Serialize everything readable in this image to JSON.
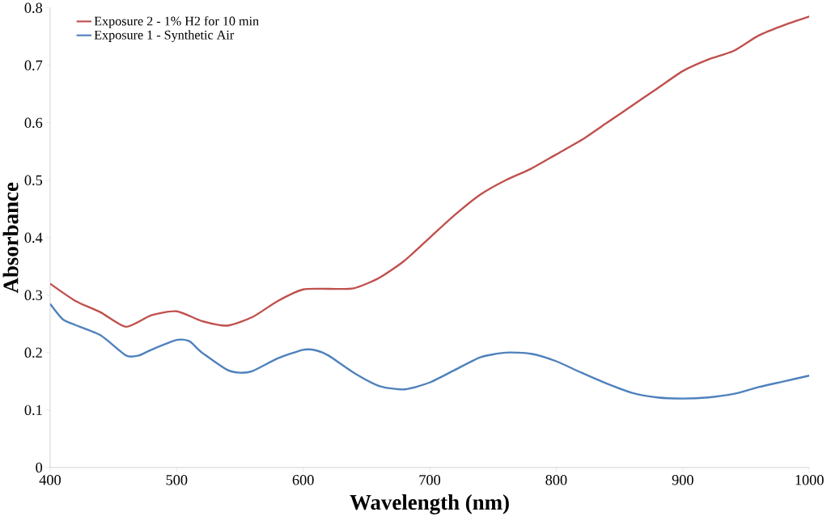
{
  "chart_data": {
    "type": "line",
    "xlabel": "Wavelength (nm)",
    "ylabel": "Absorbance",
    "xlim": [
      400,
      1000
    ],
    "xticks": [
      400,
      500,
      600,
      700,
      800,
      900,
      1000
    ],
    "ylim": [
      0,
      0.8
    ],
    "yticks": [
      0,
      0.1,
      0.2,
      0.3,
      0.4,
      0.5,
      0.6,
      0.7,
      0.8
    ],
    "legend": "top left",
    "grid": false,
    "marker": "none",
    "line_style": "solid",
    "series": [
      {
        "name": "Exposure 2 - 1% H2 for 10 min",
        "color": "#c0504d",
        "x": [
          400,
          420,
          440,
          460,
          480,
          500,
          520,
          540,
          560,
          580,
          600,
          620,
          640,
          660,
          680,
          700,
          720,
          740,
          760,
          780,
          800,
          820,
          840,
          860,
          880,
          900,
          920,
          940,
          960,
          980,
          1000
        ],
        "values": [
          0.32,
          0.29,
          0.27,
          0.245,
          0.265,
          0.272,
          0.255,
          0.247,
          0.262,
          0.29,
          0.31,
          0.311,
          0.312,
          0.33,
          0.36,
          0.4,
          0.44,
          0.475,
          0.5,
          0.52,
          0.545,
          0.57,
          0.6,
          0.63,
          0.66,
          0.69,
          0.71,
          0.725,
          0.752,
          0.77,
          0.785
        ]
      },
      {
        "name": "Exposure 1 - Synthetic Air",
        "color": "#4f81bd",
        "x": [
          400,
          410,
          420,
          440,
          460,
          470,
          480,
          500,
          510,
          520,
          540,
          550,
          560,
          580,
          600,
          610,
          620,
          640,
          660,
          680,
          700,
          720,
          740,
          760,
          780,
          800,
          820,
          840,
          860,
          880,
          900,
          920,
          940,
          960,
          980,
          1000
        ],
        "values": [
          0.285,
          0.258,
          0.248,
          0.23,
          0.195,
          0.195,
          0.205,
          0.222,
          0.22,
          0.2,
          0.17,
          0.165,
          0.168,
          0.19,
          0.205,
          0.204,
          0.195,
          0.165,
          0.142,
          0.136,
          0.148,
          0.17,
          0.192,
          0.2,
          0.198,
          0.185,
          0.165,
          0.146,
          0.13,
          0.122,
          0.12,
          0.122,
          0.128,
          0.14,
          0.15,
          0.16
        ]
      }
    ]
  }
}
